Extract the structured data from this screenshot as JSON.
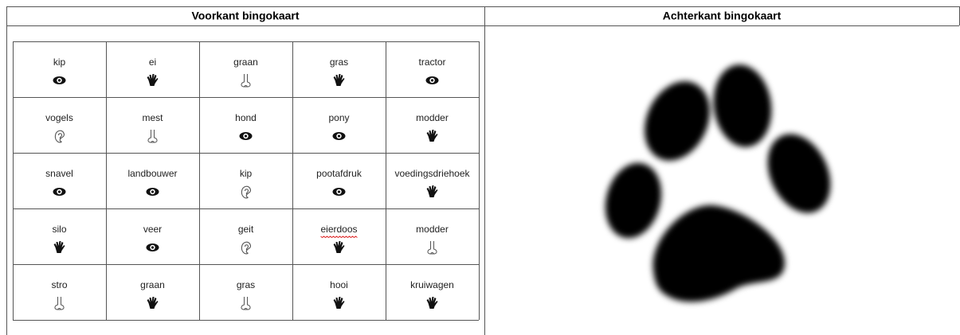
{
  "header": {
    "front": "Voorkant bingokaart",
    "back": "Achterkant bingokaart"
  },
  "table": {
    "rows": [
      [
        "kip",
        "ei",
        "graan",
        "gras",
        "tractor"
      ],
      [
        "vogels",
        "mest",
        "hond",
        "pony",
        "modder"
      ],
      [
        "snavel",
        "landbouwer",
        "kip",
        "pootafdruk",
        "voedingsdriehoek"
      ],
      [
        "silo",
        "veer",
        "geit",
        "eierdoos",
        "modder"
      ],
      [
        "stro",
        "graan",
        "gras",
        "hooi",
        "kruiwagen"
      ]
    ]
  }
}
